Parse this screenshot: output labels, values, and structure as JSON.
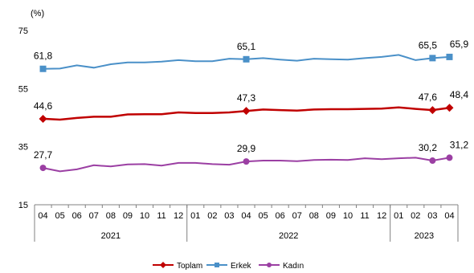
{
  "chart_data": {
    "type": "line",
    "unit_label": "(%)",
    "ylim": [
      15,
      75
    ],
    "yticks": [
      15,
      35,
      55,
      75
    ],
    "grid": false,
    "legend_position": "bottom",
    "x": [
      "04",
      "05",
      "06",
      "07",
      "08",
      "09",
      "10",
      "11",
      "12",
      "01",
      "02",
      "03",
      "04",
      "05",
      "06",
      "07",
      "08",
      "09",
      "10",
      "11",
      "12",
      "01",
      "02",
      "03",
      "04"
    ],
    "year_groups": [
      {
        "label": "2021",
        "start": 0,
        "end": 8
      },
      {
        "label": "2022",
        "start": 9,
        "end": 20
      },
      {
        "label": "2023",
        "start": 21,
        "end": 24
      }
    ],
    "series": [
      {
        "name": "Toplam",
        "color": "#c00000",
        "marker": "diamond",
        "values": [
          44.6,
          44.3,
          44.9,
          45.3,
          45.3,
          46.1,
          46.2,
          46.2,
          46.8,
          46.6,
          46.6,
          46.8,
          47.3,
          47.8,
          47.6,
          47.4,
          47.8,
          47.9,
          47.9,
          48.0,
          48.1,
          48.5,
          48.0,
          47.6,
          48.4
        ],
        "labels": {
          "0": "44,6",
          "12": "47,3",
          "23": "47,6",
          "24": "48,4"
        }
      },
      {
        "name": "Erkek",
        "color": "#4a90c8",
        "marker": "square",
        "values": [
          61.8,
          61.9,
          63.0,
          62.2,
          63.4,
          64.0,
          64.0,
          64.3,
          64.8,
          64.4,
          64.4,
          65.3,
          65.1,
          65.5,
          65.0,
          64.6,
          65.3,
          65.1,
          65.0,
          65.5,
          65.9,
          66.6,
          64.8,
          65.5,
          65.9
        ],
        "labels": {
          "0": "61,8",
          "12": "65,1",
          "23": "65,5",
          "24": "65,9"
        }
      },
      {
        "name": "Kadın",
        "color": "#9b3fa3",
        "marker": "circle",
        "values": [
          27.7,
          26.5,
          27.2,
          28.6,
          28.2,
          28.9,
          29.0,
          28.5,
          29.4,
          29.4,
          29.0,
          28.8,
          29.9,
          30.2,
          30.2,
          30.0,
          30.4,
          30.5,
          30.4,
          31.0,
          30.7,
          31.0,
          31.2,
          30.2,
          31.2
        ],
        "labels": {
          "0": "27,7",
          "12": "29,9",
          "23": "30,2",
          "24": "31,2"
        }
      }
    ]
  }
}
